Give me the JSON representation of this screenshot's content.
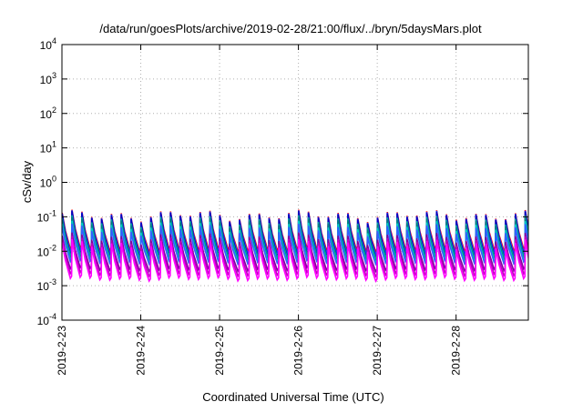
{
  "chart_data": {
    "type": "line",
    "title": "/data/run/goesPlots/archive/2019-02-28/21:00/flux/../bryn/5daysMars.plot",
    "xlabel": "Coordinated Universal Time (UTC)",
    "ylabel": "cSv/day",
    "yscale": "log",
    "ylim": [
      0.0001,
      10000
    ],
    "xlim": [
      "2019-02-23",
      "2019-02-28 22:00"
    ],
    "x_tick_labels": [
      "2019-2-23",
      "2019-2-24",
      "2019-2-25",
      "2019-2-26",
      "2019-2-27",
      "2019-2-28"
    ],
    "y_ticks": [
      {
        "base": "10",
        "exp": "4"
      },
      {
        "base": "10",
        "exp": "3"
      },
      {
        "base": "10",
        "exp": "2"
      },
      {
        "base": "10",
        "exp": "1"
      },
      {
        "base": "10",
        "exp": "0"
      },
      {
        "base": "10",
        "exp": "-1"
      },
      {
        "base": "10",
        "exp": "-2"
      },
      {
        "base": "10",
        "exp": "-3"
      },
      {
        "base": "10",
        "exp": "-4"
      }
    ],
    "grid": true,
    "pattern": {
      "cycles_per_day": 8,
      "note_peak_range": [
        0.09,
        0.17
      ],
      "note_trough_range": [
        0.001,
        0.003
      ]
    },
    "series": [
      {
        "color": "#ff0000",
        "peak": 0.115,
        "trough": 0.0095
      },
      {
        "color": "#2040ff",
        "peak": 0.11,
        "trough": 0.008
      },
      {
        "color": "#0000c0",
        "peak": 0.105,
        "trough": 0.0065
      },
      {
        "color": "#00a0a0",
        "peak": 0.08,
        "trough": 0.006
      },
      {
        "color": "#008080",
        "peak": 0.07,
        "trough": 0.005
      },
      {
        "color": "#00cccc",
        "peak": 0.055,
        "trough": 0.0045
      },
      {
        "color": "#3060ff",
        "peak": 0.045,
        "trough": 0.004
      },
      {
        "color": "#8000a0",
        "peak": 0.025,
        "trough": 0.0025
      },
      {
        "color": "#c000c0",
        "peak": 0.02,
        "trough": 0.0018
      },
      {
        "color": "#ff00ff",
        "peak": 0.016,
        "trough": 0.0013
      }
    ]
  }
}
